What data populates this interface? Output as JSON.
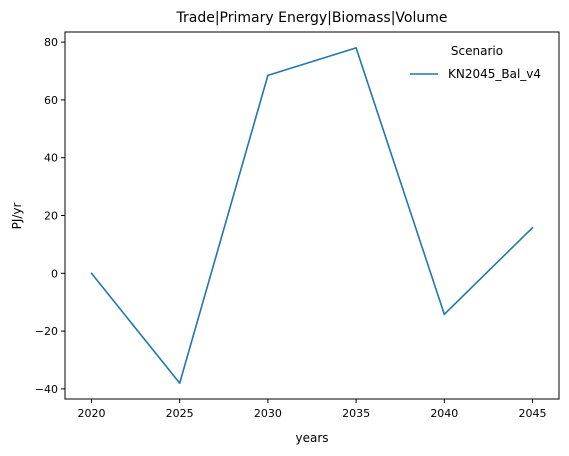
{
  "chart_data": {
    "type": "line",
    "title": "Trade|Primary Energy|Biomass|Volume",
    "xlabel": "years",
    "ylabel": "PJ/yr",
    "xlim": [
      2018.5,
      2046.5
    ],
    "ylim": [
      -43.5,
      83.5
    ],
    "x_ticks": [
      2020,
      2025,
      2030,
      2035,
      2040,
      2045
    ],
    "y_ticks": [
      -40,
      -20,
      0,
      20,
      40,
      60,
      80
    ],
    "grid": false,
    "legend": {
      "title": "Scenario",
      "placement": "top-right"
    },
    "series": [
      {
        "name": "KN2045_Bal_v4",
        "color": "#1f77b4",
        "x": [
          2020,
          2025,
          2030,
          2035,
          2040,
          2045
        ],
        "y": [
          0.0,
          -38.0,
          68.5,
          78.0,
          -14.2,
          15.8
        ]
      }
    ]
  }
}
